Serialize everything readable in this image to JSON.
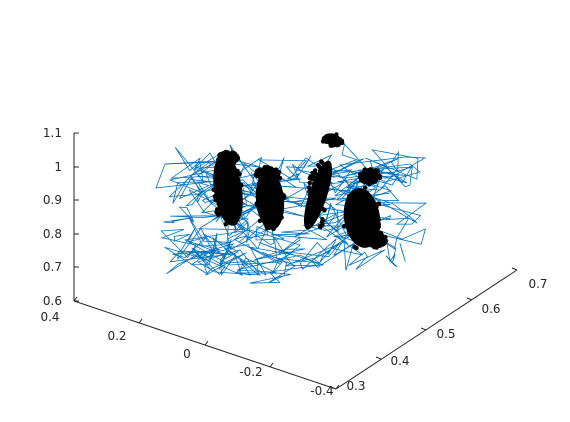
{
  "chart_data": {
    "type": "scatter",
    "title": "",
    "xlabel": "",
    "ylabel": "",
    "zlabel": "",
    "grid": false,
    "legend": false,
    "colors": {
      "wireframe": "#0072BD",
      "points": "#000000",
      "axes": "#262626"
    },
    "xlim": [
      -0.4,
      0.4
    ],
    "ylim": [
      0.3,
      0.7
    ],
    "zlim": [
      0.6,
      1.1
    ],
    "x_ticks": [
      "-0.4",
      "-0.2",
      "0",
      "0.2",
      "0.4"
    ],
    "y_ticks": [
      "0.3",
      "0.4",
      "0.5",
      "0.6",
      "0.7"
    ],
    "z_ticks": [
      "0.6",
      "0.7",
      "0.8",
      "0.9",
      "1",
      "1.1"
    ],
    "series": [
      {
        "kind": "wireframe-mesh",
        "color": "#0072BD"
      },
      {
        "kind": "point-clusters",
        "color": "#000000"
      }
    ]
  }
}
